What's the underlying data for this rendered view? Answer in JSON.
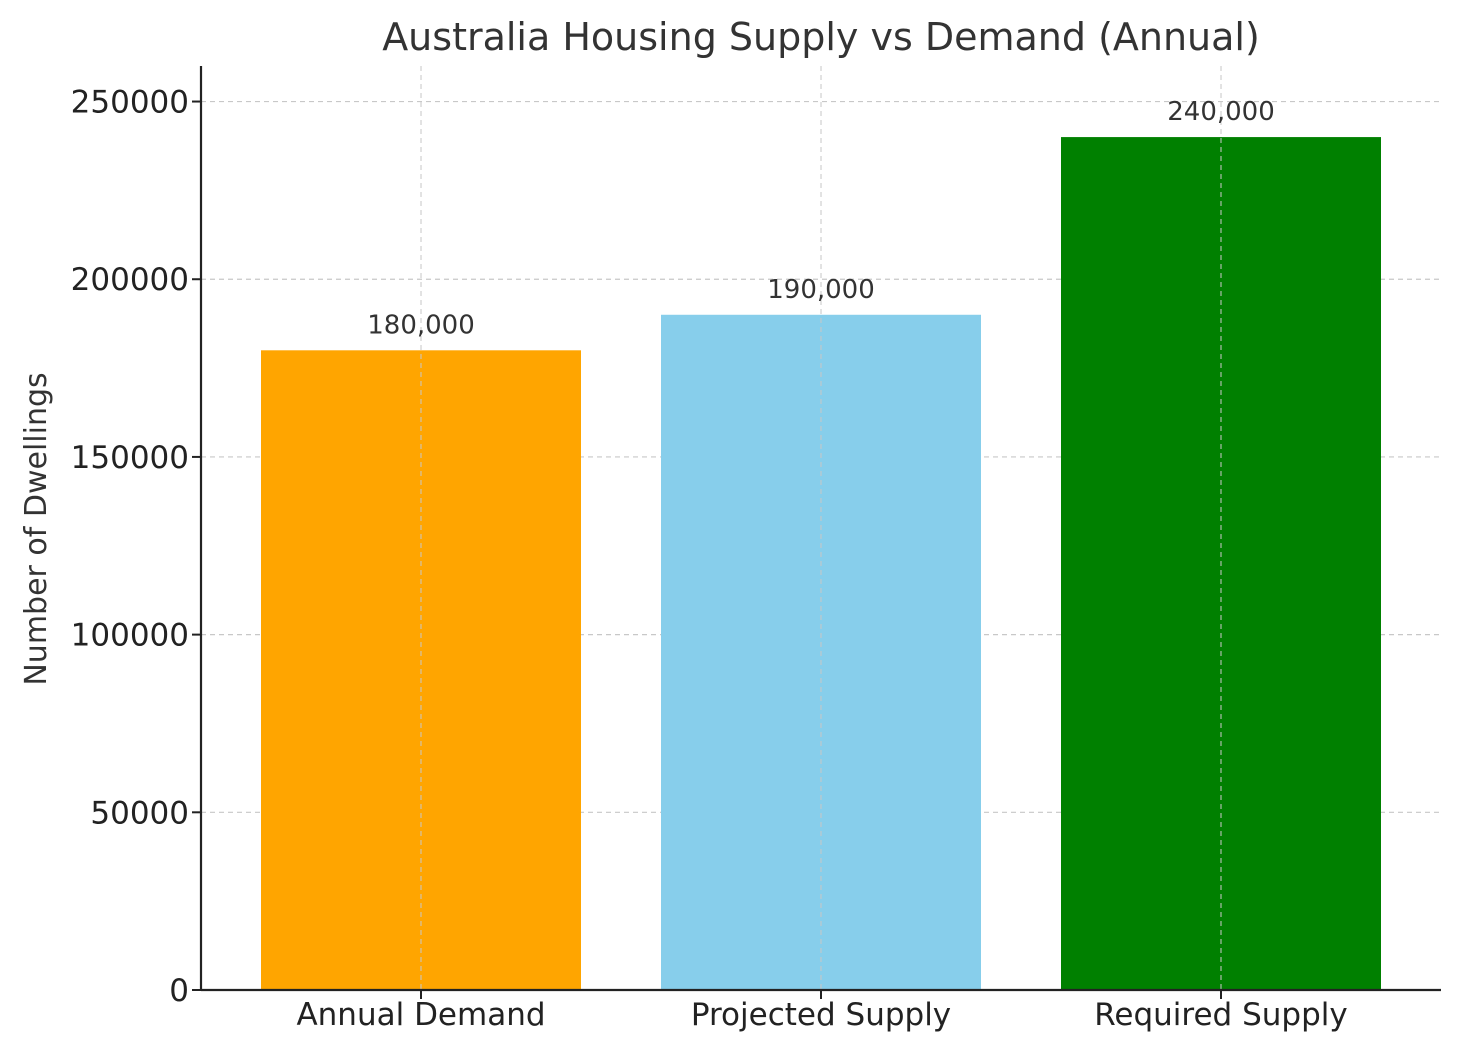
{
  "chart_data": {
    "type": "bar",
    "title": "Australia Housing Supply vs Demand (Annual)",
    "xlabel": "",
    "ylabel": "Number of Dwellings",
    "categories": [
      "Annual Demand",
      "Projected Supply",
      "Required Supply"
    ],
    "values": [
      180000,
      190000,
      240000
    ],
    "value_labels": [
      "180,000",
      "190,000",
      "240,000"
    ],
    "colors": [
      "#FFA500",
      "#87CEEB",
      "#008000"
    ],
    "ylim": [
      0,
      260000
    ],
    "yticks": [
      0,
      50000,
      100000,
      150000,
      200000,
      250000
    ],
    "ytick_labels": [
      "0",
      "50000",
      "100000",
      "150000",
      "200000",
      "250000"
    ],
    "grid": true,
    "legend": "none"
  }
}
